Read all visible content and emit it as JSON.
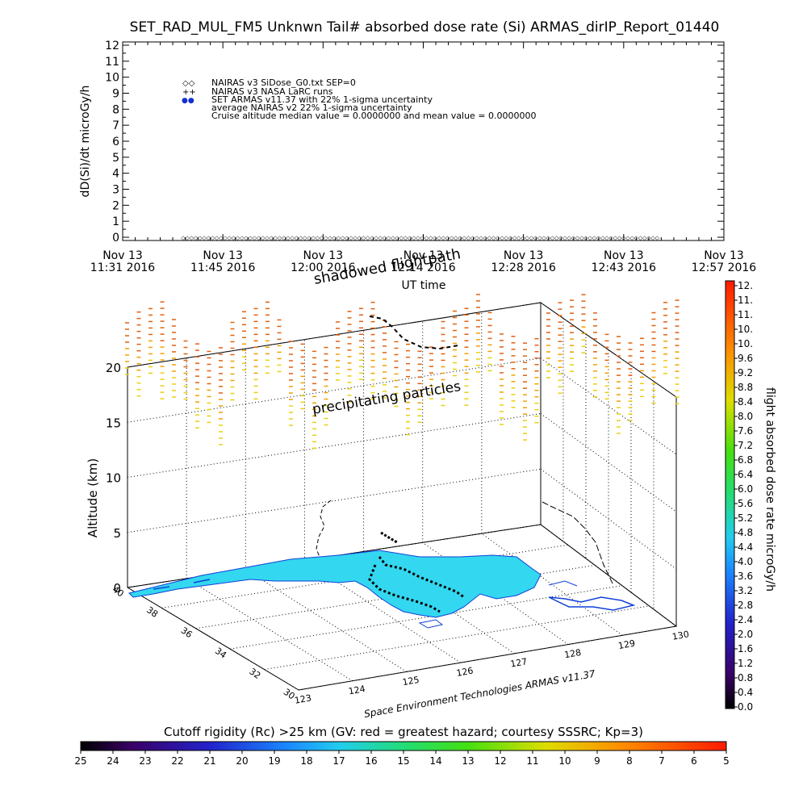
{
  "chart_data": [
    {
      "type": "scatter",
      "title": "SET_RAD_MUL_FM5 Unknwn Tail#  absorbed dose rate (Si) ARMAS_dirIP_Report_01440",
      "ylabel": "dD(Si)/dt microGy/h",
      "xlabel": "UT time",
      "ylim": [
        0,
        12
      ],
      "y_ticks": [
        "0",
        "1",
        "2",
        "3",
        "4",
        "5",
        "6",
        "7",
        "8",
        "9",
        "10",
        "11",
        "12"
      ],
      "x_ticks": [
        {
          "line1": "Nov 13",
          "line2": "11:31 2016"
        },
        {
          "line1": "Nov 13",
          "line2": "11:45 2016"
        },
        {
          "line1": "Nov 13",
          "line2": "12:00 2016"
        },
        {
          "line1": "Nov 13",
          "line2": "12:14 2016"
        },
        {
          "line1": "Nov 13",
          "line2": "12:28 2016"
        },
        {
          "line1": "Nov 13",
          "line2": "12:43 2016"
        },
        {
          "line1": "Nov 13",
          "line2": "12:57 2016"
        }
      ],
      "legend": [
        {
          "symbol": "◇◇",
          "label": "NAIRAS v3 SiDose_G0.txt SEP=0"
        },
        {
          "symbol": "++",
          "label": "NAIRAS v3 NASA LaRC runs"
        },
        {
          "symbol": "●●",
          "label": "SET ARMAS v11.37 with 22% 1-sigma uncertainty",
          "color": "#1030d0"
        },
        {
          "symbol": "",
          "label": "average NAIRAS v2 22% 1-sigma uncertainty"
        },
        {
          "symbol": "",
          "label": "Cruise altitude median value = 0.0000000 and mean value = 0.0000000"
        }
      ],
      "legend_position": "top-left",
      "series": [
        {
          "x_range_minutes": [
            0,
            75
          ],
          "y": 0
        }
      ]
    },
    {
      "type": "scatter",
      "ylabel": "Altitude (km)",
      "z_ticks": [
        "0",
        "5",
        "10",
        "15",
        "20"
      ],
      "lat_ticks": [
        "40",
        "38",
        "36",
        "34",
        "32",
        "30"
      ],
      "lon_ticks": [
        "123",
        "124",
        "125",
        "126",
        "127",
        "128",
        "129",
        "130"
      ],
      "annotations": [
        "shadowed flightpath",
        "precipitating particles"
      ],
      "credit": "Space Environment Technologies ARMAS v11.37",
      "colorbar_right": {
        "label": "flight absorbed dose rate microGy/h",
        "ticks": [
          "0.0",
          "0.4",
          "0.8",
          "1.2",
          "1.6",
          "2.0",
          "2.4",
          "2.8",
          "3.2",
          "3.6",
          "4.0",
          "4.4",
          "4.8",
          "5.2",
          "5.6",
          "6.0",
          "6.4",
          "6.8",
          "7.2",
          "7.6",
          "8.0",
          "8.4",
          "8.8",
          "9.2",
          "9.6",
          "10.",
          "10.",
          "11.",
          "11.",
          "12."
        ]
      },
      "colorbar_bottom": {
        "label": "Cutoff rigidity (Rc) >25 km (GV: red = greatest hazard; courtesy SSSRC; Kp=3)",
        "ticks": [
          "25",
          "24",
          "23",
          "22",
          "21",
          "20",
          "19",
          "18",
          "17",
          "16",
          "15",
          "14",
          "13",
          "12",
          "11",
          "10",
          "9",
          "8",
          "7",
          "6",
          "5"
        ]
      },
      "colors": {
        "land": "#33d7f0",
        "coast": "#1040d8",
        "flight": "#000000"
      }
    }
  ]
}
